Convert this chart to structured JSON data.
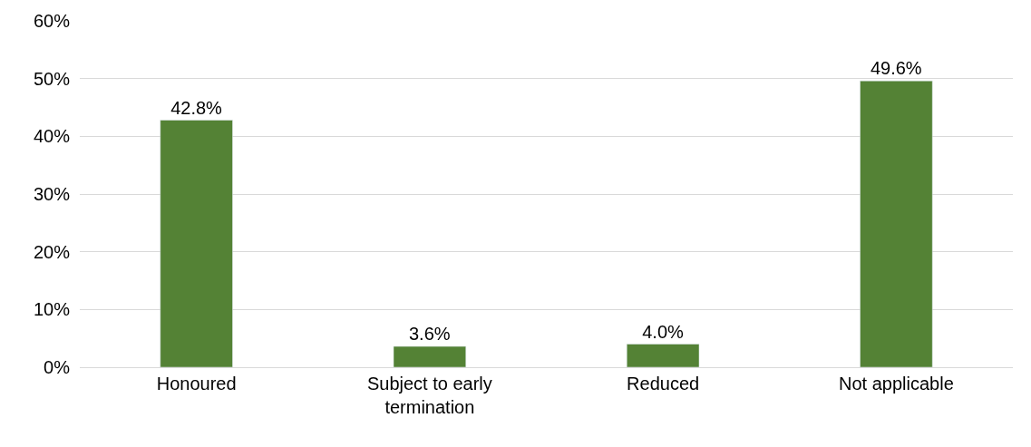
{
  "chart_data": {
    "type": "bar",
    "categories": [
      "Honoured",
      "Subject to early termination",
      "Reduced",
      "Not applicable"
    ],
    "values": [
      42.8,
      3.6,
      4.0,
      49.6
    ],
    "value_labels": [
      "42.8%",
      "3.6%",
      "4.0%",
      "49.6%"
    ],
    "color": "#548235",
    "ylim": [
      0,
      60
    ],
    "yticks": [
      {
        "value": 0,
        "label": "0%"
      },
      {
        "value": 10,
        "label": "10%"
      },
      {
        "value": 20,
        "label": "20%"
      },
      {
        "value": 30,
        "label": "30%"
      },
      {
        "value": 40,
        "label": "40%"
      },
      {
        "value": 50,
        "label": "50%"
      },
      {
        "value": 60,
        "label": "60%"
      }
    ],
    "grid": "y",
    "legend": false
  }
}
